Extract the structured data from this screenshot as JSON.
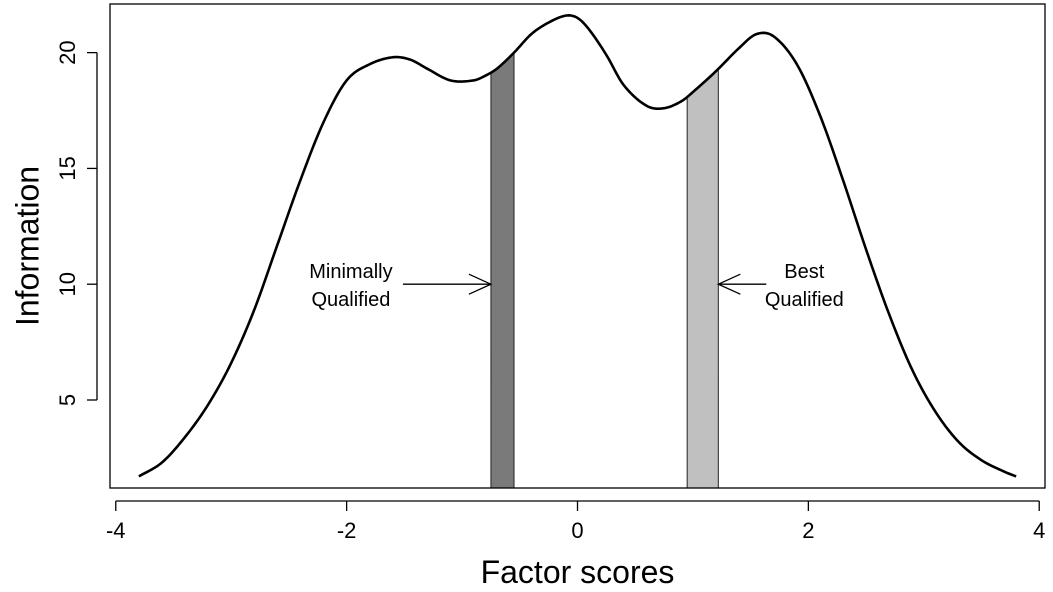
{
  "chart_data": {
    "type": "line",
    "title": "",
    "xlabel": "Factor scores",
    "ylabel": "Information",
    "xlim": [
      -4.05,
      4.05
    ],
    "ylim": [
      1.2,
      22.1
    ],
    "xticks": [
      -4,
      -2,
      0,
      2,
      4
    ],
    "xtick_labels": [
      "-4",
      "-2",
      "0",
      "2",
      "4"
    ],
    "yticks": [
      5,
      10,
      15,
      20
    ],
    "ytick_labels": [
      "5",
      "10",
      "15",
      "20"
    ],
    "grid": false,
    "legend": "none",
    "series": [
      {
        "color": "#000000",
        "x": [
          -3.8,
          -3.6,
          -3.4,
          -3.2,
          -3.0,
          -2.8,
          -2.6,
          -2.4,
          -2.2,
          -2.0,
          -1.8,
          -1.6,
          -1.45,
          -1.3,
          -1.1,
          -0.9,
          -0.8,
          -0.7,
          -0.55,
          -0.4,
          -0.25,
          -0.1,
          0.0,
          0.1,
          0.25,
          0.4,
          0.6,
          0.75,
          0.9,
          1.0,
          1.2,
          1.4,
          1.55,
          1.7,
          1.9,
          2.1,
          2.3,
          2.5,
          2.7,
          2.9,
          3.1,
          3.3,
          3.5,
          3.7,
          3.8
        ],
        "y": [
          1.7,
          2.3,
          3.4,
          4.8,
          6.6,
          8.9,
          11.7,
          14.5,
          17.0,
          18.8,
          19.5,
          19.8,
          19.7,
          19.3,
          18.8,
          18.8,
          19.0,
          19.3,
          20.0,
          20.8,
          21.3,
          21.6,
          21.5,
          21.0,
          19.9,
          18.6,
          17.7,
          17.6,
          17.9,
          18.3,
          19.2,
          20.2,
          20.8,
          20.7,
          19.5,
          17.3,
          14.5,
          11.5,
          8.7,
          6.3,
          4.5,
          3.2,
          2.4,
          1.9,
          1.7
        ]
      }
    ],
    "bands": [
      {
        "x0": -0.75,
        "x1": -0.55,
        "color": "#7a7a7a"
      },
      {
        "x0": 0.95,
        "x1": 1.22,
        "color": "#c0c0c0"
      }
    ],
    "annotations": [
      {
        "lines": [
          "Minimally",
          "Qualified"
        ],
        "arrow_y": 10,
        "arrow_to_x": -0.75
      },
      {
        "lines": [
          "Best",
          "Qualified"
        ],
        "arrow_y": 10,
        "arrow_to_x": 1.22
      }
    ]
  }
}
